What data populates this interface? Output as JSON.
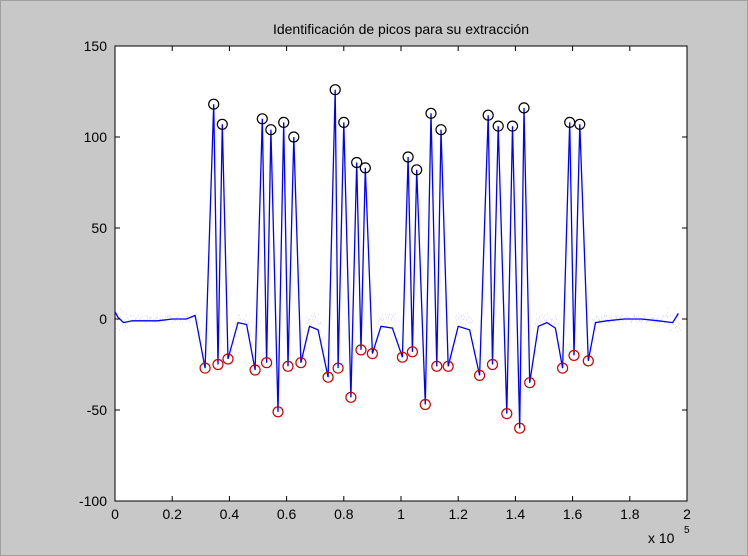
{
  "chart_data": {
    "type": "line",
    "title": "Identificación de picos para su extracción",
    "xlabel": "",
    "ylabel": "",
    "xlim": [
      0,
      2
    ],
    "ylim": [
      -100,
      150
    ],
    "x_multiplier_base": "x 10",
    "x_multiplier_exp": "5",
    "xticks": [
      "0",
      "0.2",
      "0.4",
      "0.6",
      "0.8",
      "1",
      "1.2",
      "1.4",
      "1.6",
      "1.8",
      "2"
    ],
    "yticks": [
      "-100",
      "-50",
      "0",
      "50",
      "100",
      "150"
    ],
    "grid": false,
    "colors": {
      "line": "#0000ff",
      "peaks": "#000000",
      "troughs": "#cc0000",
      "background": "#c8c8c8",
      "axes": "#ffffff"
    },
    "signal_line": [
      [
        0.0,
        4
      ],
      [
        0.01,
        1
      ],
      [
        0.03,
        -2
      ],
      [
        0.06,
        -1
      ],
      [
        0.1,
        -1
      ],
      [
        0.15,
        -1
      ],
      [
        0.2,
        0
      ],
      [
        0.25,
        0
      ],
      [
        0.28,
        2
      ],
      [
        0.315,
        -27
      ],
      [
        0.345,
        118
      ],
      [
        0.36,
        -25
      ],
      [
        0.375,
        107
      ],
      [
        0.395,
        -22
      ],
      [
        0.43,
        -2
      ],
      [
        0.46,
        -3
      ],
      [
        0.49,
        -28
      ],
      [
        0.515,
        110
      ],
      [
        0.53,
        -24
      ],
      [
        0.545,
        104
      ],
      [
        0.57,
        -51
      ],
      [
        0.59,
        108
      ],
      [
        0.605,
        -26
      ],
      [
        0.625,
        100
      ],
      [
        0.65,
        -24
      ],
      [
        0.68,
        -4
      ],
      [
        0.71,
        -6
      ],
      [
        0.745,
        -32
      ],
      [
        0.77,
        126
      ],
      [
        0.78,
        -27
      ],
      [
        0.8,
        108
      ],
      [
        0.825,
        -43
      ],
      [
        0.845,
        86
      ],
      [
        0.86,
        -17
      ],
      [
        0.875,
        83
      ],
      [
        0.9,
        -19
      ],
      [
        0.93,
        -4
      ],
      [
        0.97,
        -5
      ],
      [
        1.005,
        -21
      ],
      [
        1.025,
        89
      ],
      [
        1.04,
        -18
      ],
      [
        1.055,
        82
      ],
      [
        1.085,
        -47
      ],
      [
        1.105,
        113
      ],
      [
        1.125,
        -26
      ],
      [
        1.14,
        104
      ],
      [
        1.165,
        -26
      ],
      [
        1.2,
        -4
      ],
      [
        1.24,
        -6
      ],
      [
        1.275,
        -31
      ],
      [
        1.305,
        112
      ],
      [
        1.32,
        -25
      ],
      [
        1.34,
        106
      ],
      [
        1.37,
        -52
      ],
      [
        1.39,
        106
      ],
      [
        1.415,
        -60
      ],
      [
        1.43,
        116
      ],
      [
        1.45,
        -35
      ],
      [
        1.48,
        -4
      ],
      [
        1.51,
        -2
      ],
      [
        1.54,
        -5
      ],
      [
        1.565,
        -27
      ],
      [
        1.59,
        108
      ],
      [
        1.605,
        -20
      ],
      [
        1.625,
        107
      ],
      [
        1.655,
        -23
      ],
      [
        1.68,
        -2
      ],
      [
        1.72,
        -1
      ],
      [
        1.78,
        0
      ],
      [
        1.84,
        0
      ],
      [
        1.9,
        -1
      ],
      [
        1.95,
        -2
      ],
      [
        1.97,
        3
      ]
    ],
    "peaks": [
      [
        0.345,
        118
      ],
      [
        0.375,
        107
      ],
      [
        0.515,
        110
      ],
      [
        0.545,
        104
      ],
      [
        0.59,
        108
      ],
      [
        0.625,
        100
      ],
      [
        0.77,
        126
      ],
      [
        0.8,
        108
      ],
      [
        0.845,
        86
      ],
      [
        0.875,
        83
      ],
      [
        1.025,
        89
      ],
      [
        1.055,
        82
      ],
      [
        1.105,
        113
      ],
      [
        1.14,
        104
      ],
      [
        1.305,
        112
      ],
      [
        1.34,
        106
      ],
      [
        1.39,
        106
      ],
      [
        1.43,
        116
      ],
      [
        1.59,
        108
      ],
      [
        1.625,
        107
      ]
    ],
    "troughs": [
      [
        0.315,
        -27
      ],
      [
        0.36,
        -25
      ],
      [
        0.395,
        -22
      ],
      [
        0.49,
        -28
      ],
      [
        0.53,
        -24
      ],
      [
        0.57,
        -51
      ],
      [
        0.605,
        -26
      ],
      [
        0.65,
        -24
      ],
      [
        0.745,
        -32
      ],
      [
        0.78,
        -27
      ],
      [
        0.825,
        -43
      ],
      [
        0.86,
        -17
      ],
      [
        0.9,
        -19
      ],
      [
        1.005,
        -21
      ],
      [
        1.04,
        -18
      ],
      [
        1.085,
        -47
      ],
      [
        1.125,
        -26
      ],
      [
        1.165,
        -26
      ],
      [
        1.275,
        -31
      ],
      [
        1.32,
        -25
      ],
      [
        1.37,
        -52
      ],
      [
        1.415,
        -60
      ],
      [
        1.45,
        -35
      ],
      [
        1.565,
        -27
      ],
      [
        1.605,
        -20
      ],
      [
        1.655,
        -23
      ]
    ]
  }
}
